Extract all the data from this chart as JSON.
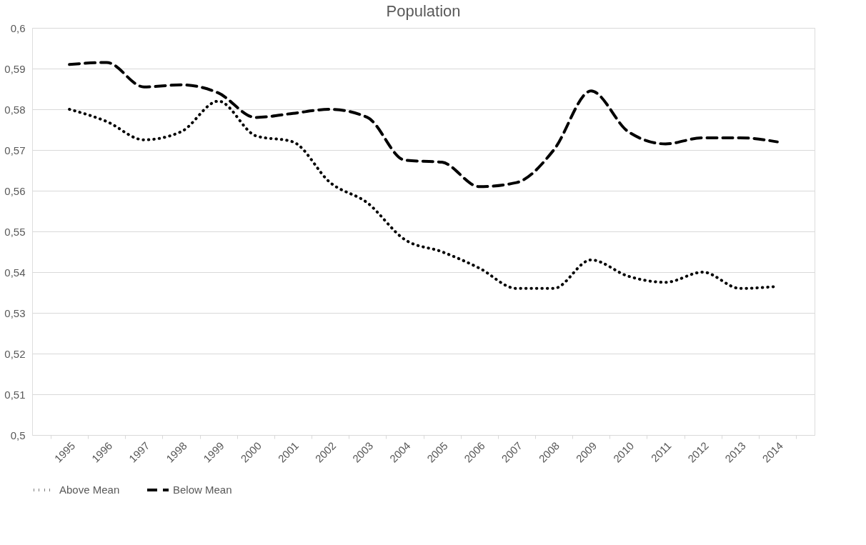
{
  "chart_data": {
    "type": "line",
    "title": "Population",
    "categories": [
      "1995",
      "1996",
      "1997",
      "1998",
      "1999",
      "2000",
      "2001",
      "2002",
      "2003",
      "2004",
      "2005",
      "2006",
      "2007",
      "2008",
      "2009",
      "2010",
      "2011",
      "2012",
      "2013",
      "2014"
    ],
    "series": [
      {
        "name": "Above Mean",
        "color": "#000000",
        "line_style": "dotted",
        "values": [
          0.58,
          0.577,
          0.5725,
          0.5745,
          0.582,
          0.5735,
          0.572,
          0.562,
          0.557,
          0.548,
          0.545,
          0.541,
          0.536,
          0.536,
          0.543,
          0.539,
          0.5375,
          0.54,
          0.536,
          0.5365
        ]
      },
      {
        "name": "Below Mean",
        "color": "#000000",
        "line_style": "dashed",
        "values": [
          0.591,
          0.5915,
          0.5855,
          0.586,
          0.584,
          0.578,
          0.579,
          0.58,
          0.578,
          0.5675,
          0.567,
          0.561,
          0.562,
          0.57,
          0.5845,
          0.5745,
          0.5715,
          0.573,
          0.573,
          0.572
        ]
      }
    ],
    "ylim": [
      0.5,
      0.6
    ],
    "yticks": [
      {
        "value": 0.5,
        "label": "0,5"
      },
      {
        "value": 0.51,
        "label": "0,51"
      },
      {
        "value": 0.52,
        "label": "0,52"
      },
      {
        "value": 0.53,
        "label": "0,53"
      },
      {
        "value": 0.54,
        "label": "0,54"
      },
      {
        "value": 0.55,
        "label": "0,55"
      },
      {
        "value": 0.56,
        "label": "0,56"
      },
      {
        "value": 0.57,
        "label": "0,57"
      },
      {
        "value": 0.58,
        "label": "0,58"
      },
      {
        "value": 0.59,
        "label": "0,59"
      },
      {
        "value": 0.6,
        "label": "0,6"
      }
    ],
    "grid": "y",
    "legend": "bottom",
    "marker": "none"
  }
}
